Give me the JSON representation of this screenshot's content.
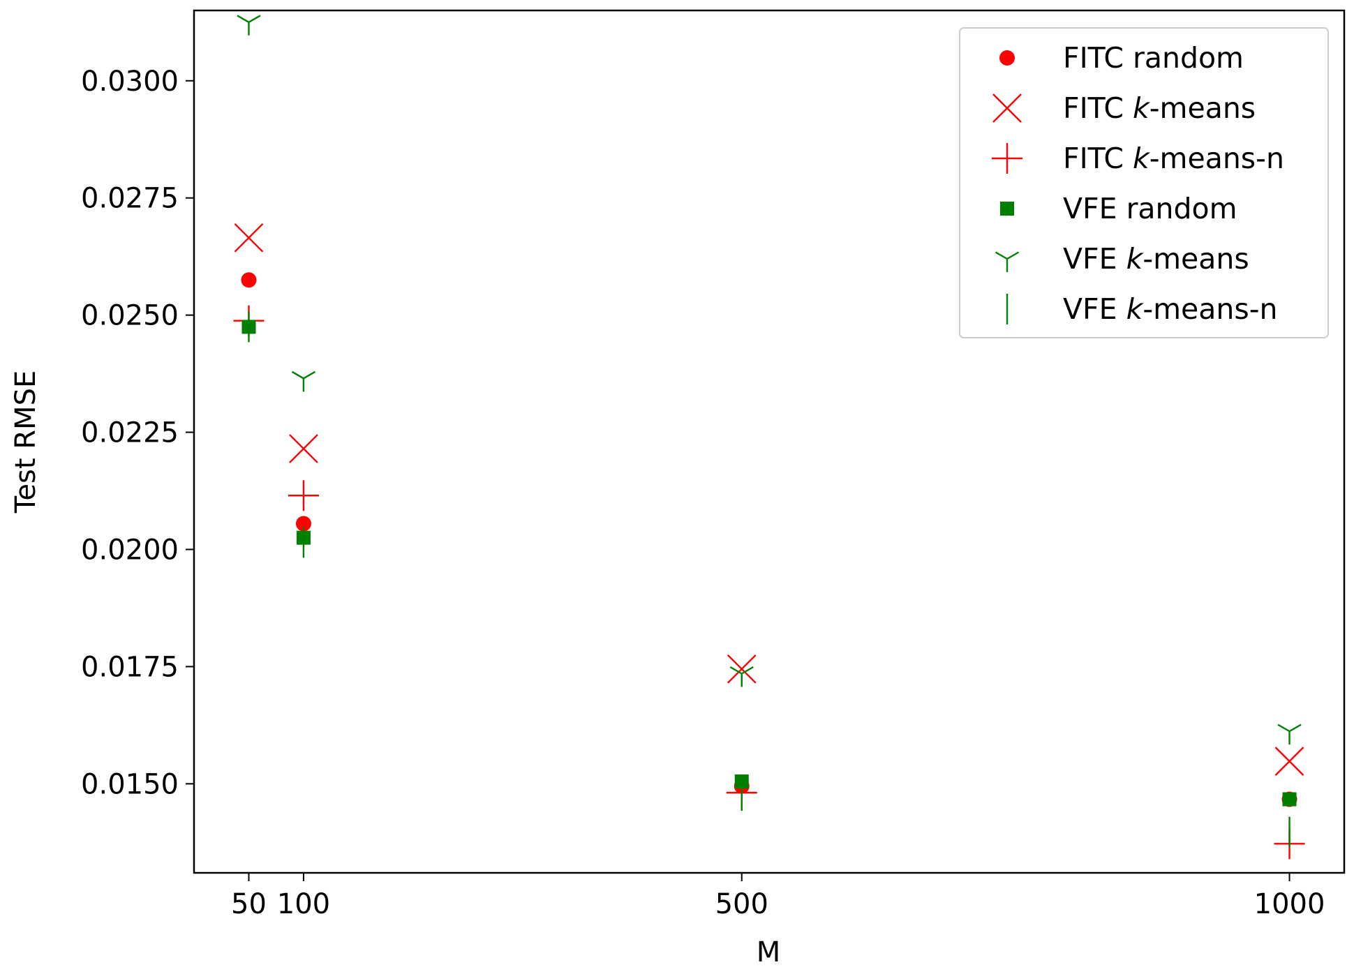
{
  "chart_data": {
    "type": "scatter",
    "title": "",
    "xlabel": "M",
    "ylabel": "Test RMSE",
    "xlim": [
      0,
      1050
    ],
    "ylim": [
      0.0131,
      0.0315
    ],
    "grid": false,
    "legend_position": "top-right",
    "x_ticks": [
      50,
      100,
      500,
      1000
    ],
    "x_tick_labels": [
      "50",
      "100",
      "500",
      "1000"
    ],
    "y_ticks": [
      0.015,
      0.0175,
      0.02,
      0.0225,
      0.025,
      0.0275,
      0.03
    ],
    "y_tick_labels": [
      "0.0150",
      "0.0175",
      "0.0200",
      "0.0225",
      "0.0250",
      "0.0275",
      "0.0300"
    ],
    "series": [
      {
        "name": "FITC random",
        "legend": {
          "pre": "FITC random",
          "ital": "",
          "post": ""
        },
        "marker": "circle",
        "color": "#ff0000",
        "x": [
          50,
          100,
          500,
          1000
        ],
        "y": [
          0.02575,
          0.02055,
          0.01495,
          0.01467
        ]
      },
      {
        "name": "FITC  k-means",
        "legend": {
          "pre": "FITC  ",
          "ital": "k",
          "post": "-means"
        },
        "marker": "x",
        "color": "#ff0000",
        "x": [
          50,
          100,
          500,
          1000
        ],
        "y": [
          0.02665,
          0.02215,
          0.01745,
          0.01548
        ]
      },
      {
        "name": "FITC k-means-n",
        "legend": {
          "pre": "FITC ",
          "ital": "k",
          "post": "-means-n"
        },
        "marker": "plus",
        "color": "#ff0000",
        "x": [
          50,
          100,
          500,
          1000
        ],
        "y": [
          0.02488,
          0.02115,
          0.01481,
          0.01372
        ]
      },
      {
        "name": "VFE random",
        "legend": {
          "pre": "VFE random",
          "ital": "",
          "post": ""
        },
        "marker": "square",
        "color": "#008000",
        "x": [
          50,
          100,
          500,
          1000
        ],
        "y": [
          0.02475,
          0.02025,
          0.01505,
          0.01467
        ]
      },
      {
        "name": "VFE k-means",
        "legend": {
          "pre": "VFE ",
          "ital": "k",
          "post": "-means"
        },
        "marker": "tri_down",
        "color": "#008000",
        "x": [
          50,
          100,
          500,
          1000
        ],
        "y": [
          0.03125,
          0.02365,
          0.01735,
          0.01612
        ]
      },
      {
        "name": "VFE k-means-n",
        "legend": {
          "pre": "VFE ",
          "ital": "k",
          "post": "-means-n"
        },
        "marker": "vline",
        "color": "#008000",
        "x": [
          50,
          100,
          500,
          1000
        ],
        "y": [
          0.02475,
          0.02015,
          0.01475,
          0.01397
        ]
      }
    ]
  }
}
